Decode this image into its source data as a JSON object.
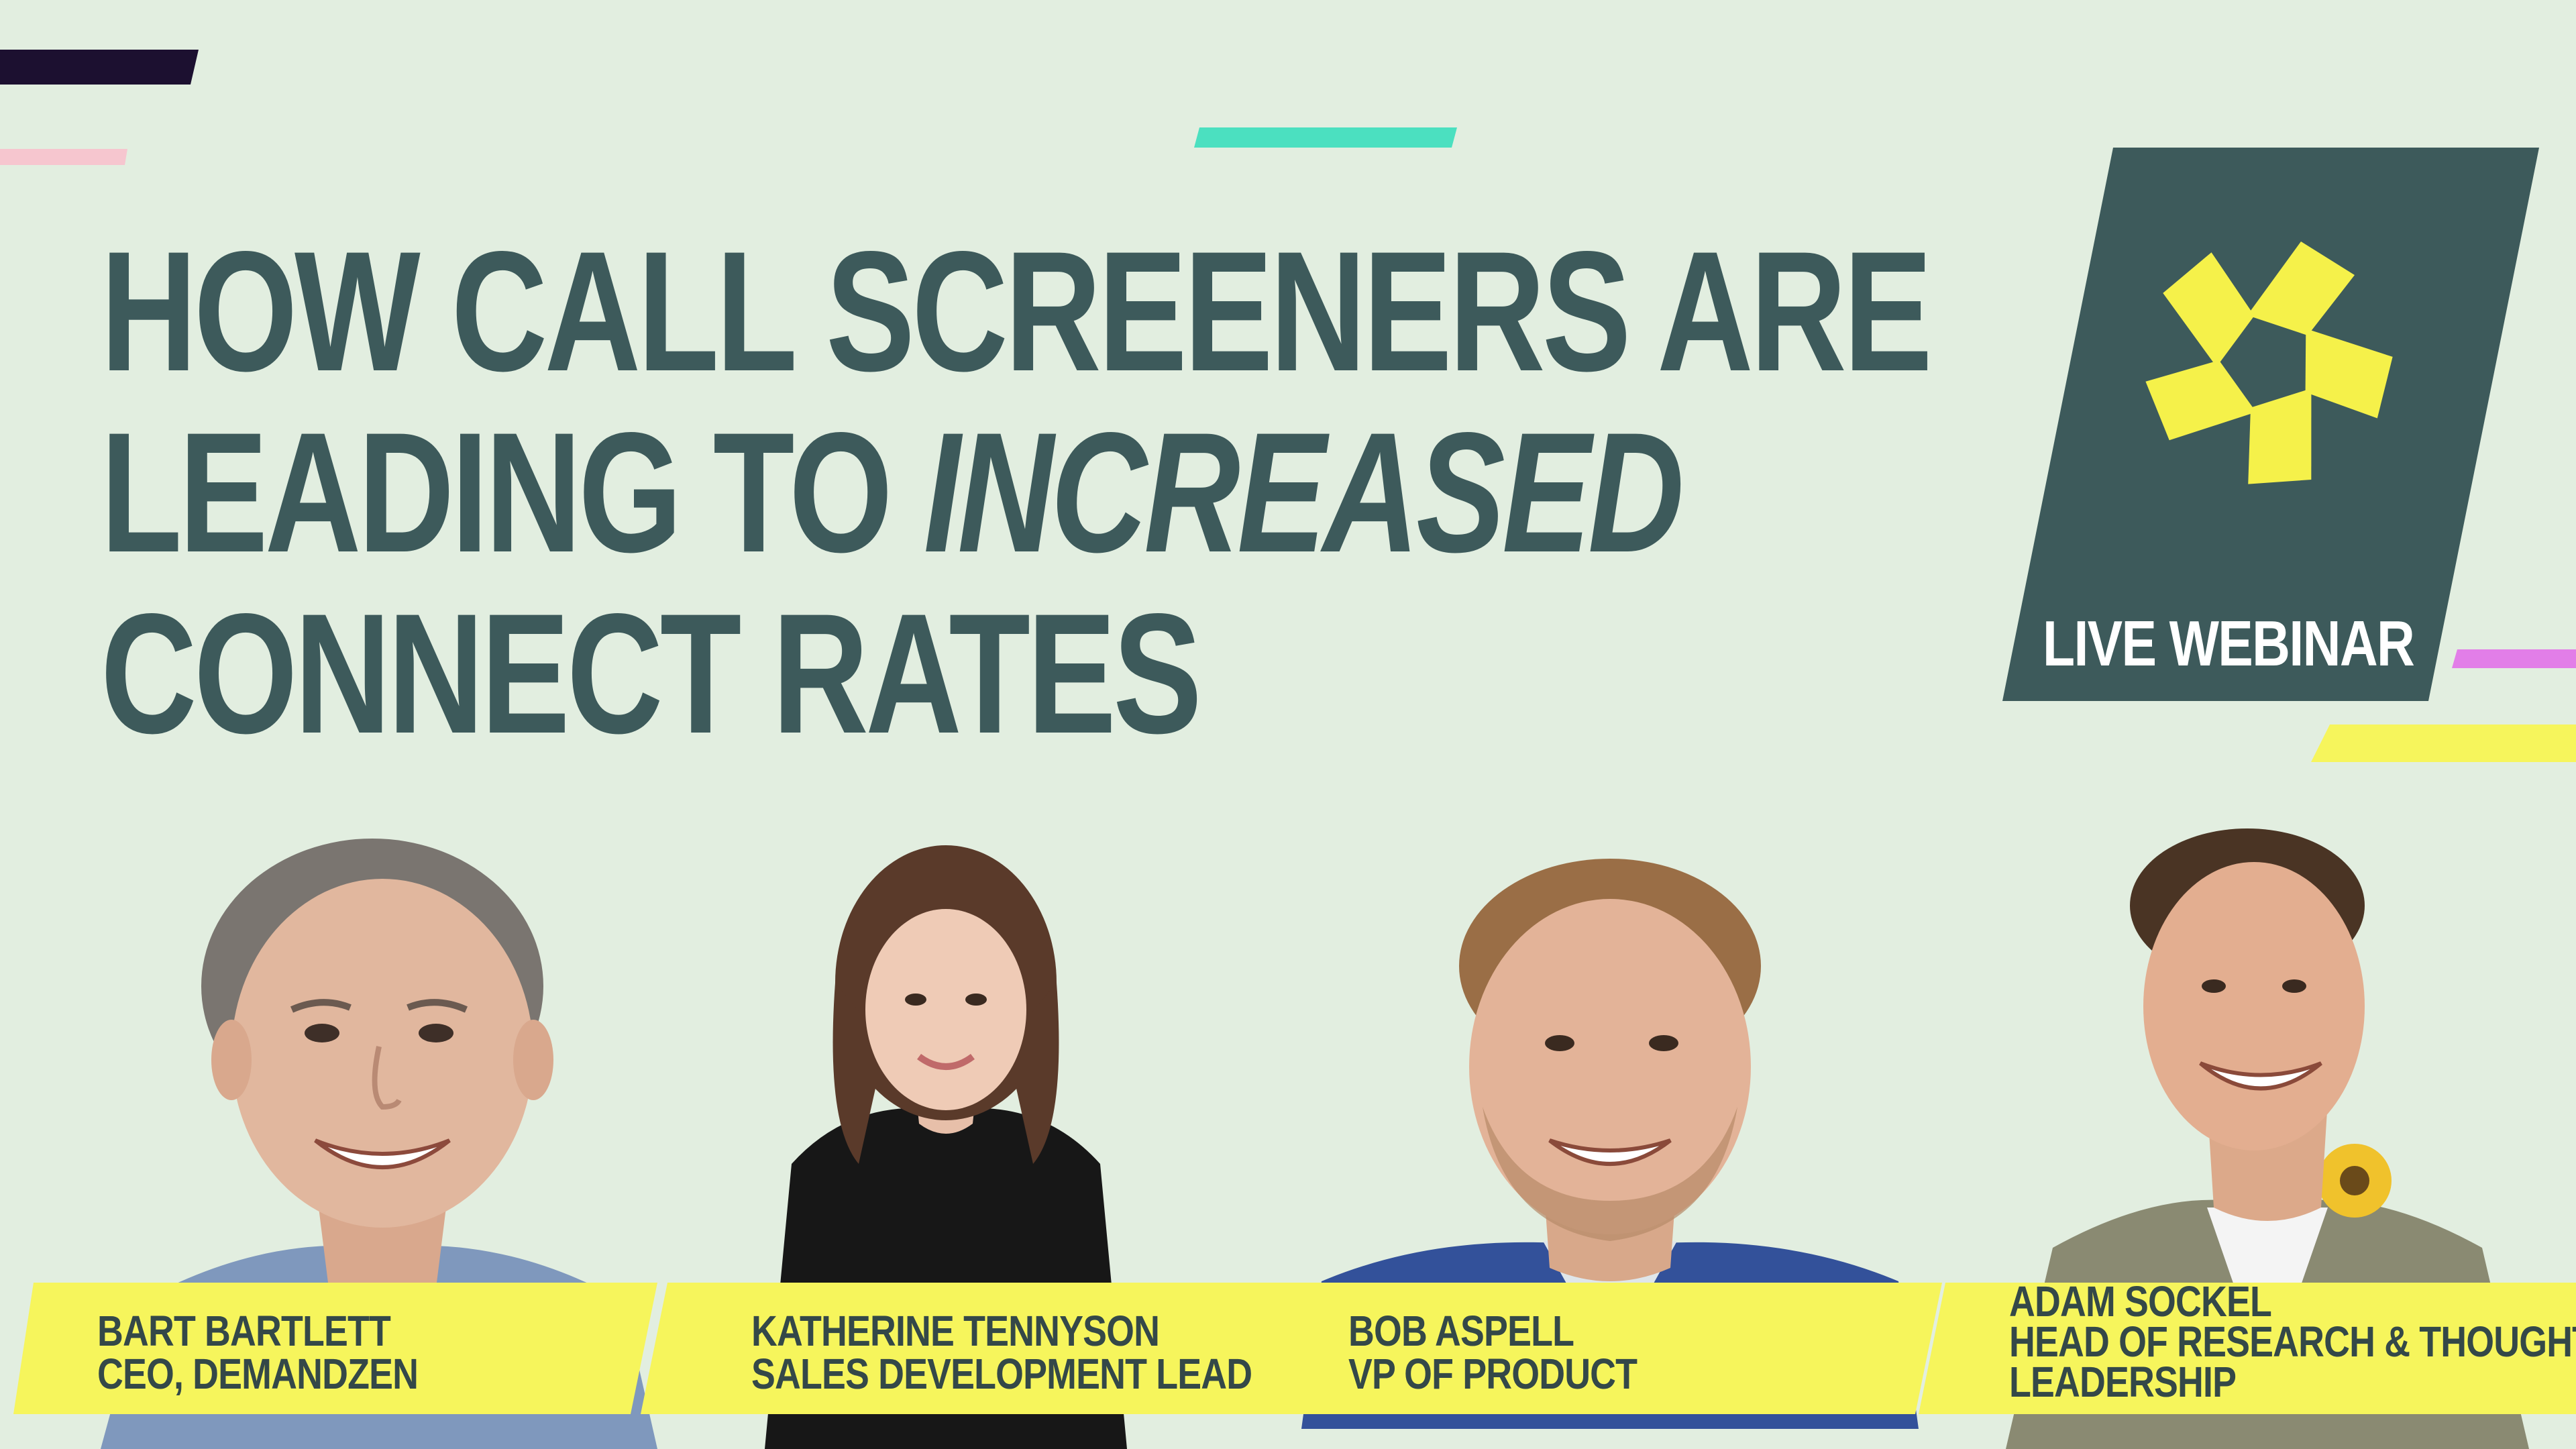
{
  "title": {
    "line1": "HOW CALL SCREENERS ARE",
    "line2_plain": "LEADING TO ",
    "line2_emphasis": "INCREASED",
    "line3": "CONNECT RATES"
  },
  "badge": {
    "label": "LIVE WEBINAR",
    "icon": "aperture-logo-icon"
  },
  "speakers": [
    {
      "name": "BART BARTLETT",
      "role": "CEO, DEMANDZEN"
    },
    {
      "name": "KATHERINE TENNYSON",
      "role": "SALES DEVELOPMENT LEAD"
    },
    {
      "name": "BOB ASPELL",
      "role": "VP OF PRODUCT"
    },
    {
      "name": "ADAM SOCKEL",
      "role_line1": "HEAD OF RESEARCH & THOUGHT",
      "role_line2": "LEADERSHIP"
    }
  ],
  "colors": {
    "background": "#e2eee0",
    "title": "#3d5a5b",
    "badge_panel": "#3d5a5b",
    "logo_yellow": "#f5f14a",
    "nameplate": "#f6f55c",
    "stripe_dark": "#1c1030",
    "stripe_pink": "#f6c6cf",
    "stripe_teal": "#4be0c0",
    "stripe_magenta": "#e27ee8",
    "stripe_yellow": "#f6f55c"
  }
}
